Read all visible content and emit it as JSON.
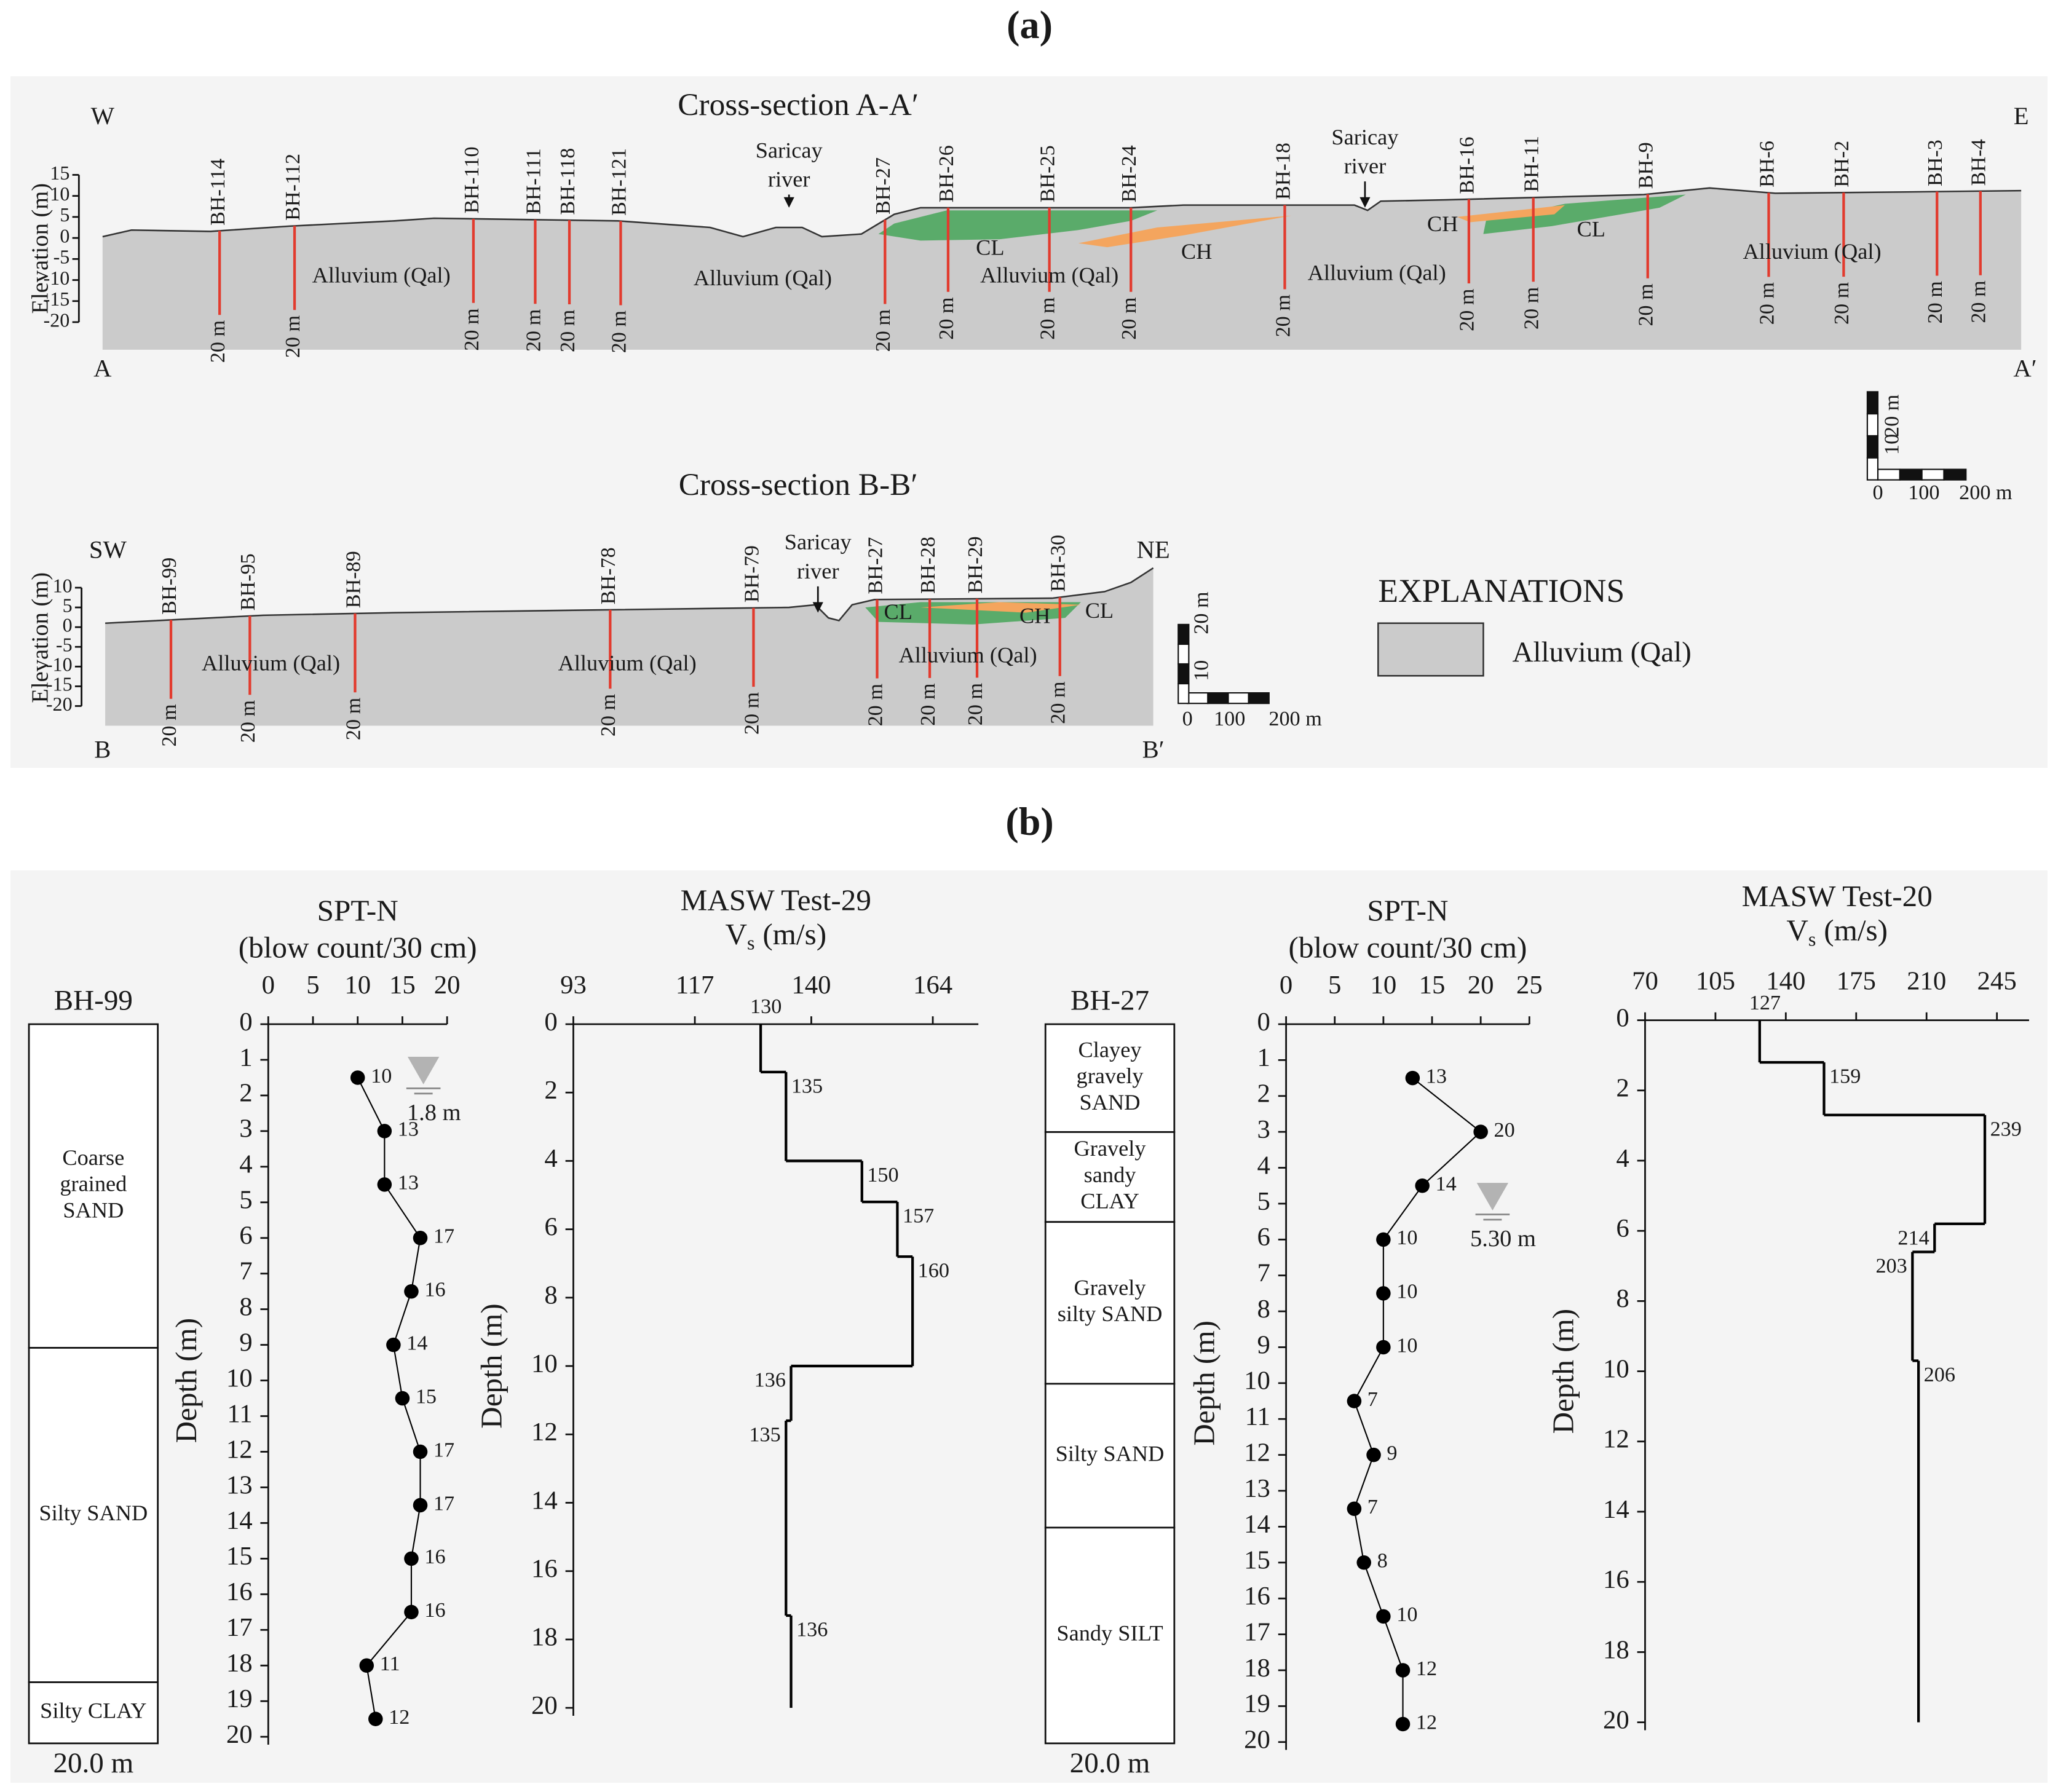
{
  "figure_a": {
    "label": "(a)",
    "section_aa": {
      "title": "Cross-section A-A′",
      "west": "W",
      "east": "E",
      "start": "A",
      "end": "A′",
      "ylabel": "Elevation (m)",
      "yticks": [
        15,
        10,
        5,
        0,
        -5,
        -10,
        -15,
        -20
      ],
      "boreholes": [
        {
          "name": "BH-114",
          "depth": "20 m"
        },
        {
          "name": "BH-112",
          "depth": "20 m"
        },
        {
          "name": "BH-110",
          "depth": "20 m"
        },
        {
          "name": "BH-111",
          "depth": "20 m"
        },
        {
          "name": "BH-118",
          "depth": "20 m"
        },
        {
          "name": "BH-121",
          "depth": "20 m"
        },
        {
          "name": "BH-27",
          "depth": "20 m"
        },
        {
          "name": "BH-26",
          "depth": "20 m"
        },
        {
          "name": "BH-25",
          "depth": "20 m"
        },
        {
          "name": "BH-24",
          "depth": "20 m"
        },
        {
          "name": "BH-18",
          "depth": "20 m"
        },
        {
          "name": "BH-16",
          "depth": "20 m"
        },
        {
          "name": "BH-11",
          "depth": "20 m"
        },
        {
          "name": "BH-9",
          "depth": "20 m"
        },
        {
          "name": "BH-6",
          "depth": "20 m"
        },
        {
          "name": "BH-2",
          "depth": "20 m"
        },
        {
          "name": "BH-3",
          "depth": "20 m"
        },
        {
          "name": "BH-4",
          "depth": "20 m"
        }
      ],
      "rivers": [
        [
          "Saricay",
          "river"
        ],
        [
          "Saricay",
          "river"
        ]
      ],
      "units": [
        "Alluvium (Qal)",
        "Alluvium (Qal)",
        "Alluvium (Qal)",
        "Alluvium (Qal)",
        "Alluvium (Qal)",
        "CL",
        "CH",
        "CH",
        "CL"
      ],
      "scale": [
        "20 m",
        "10",
        "0",
        "100",
        "200 m"
      ]
    },
    "section_bb": {
      "title": "Cross-section B-B′",
      "west": "SW",
      "east": "NE",
      "start": "B",
      "end": "B′",
      "ylabel": "Elevation (m)",
      "yticks": [
        10,
        5,
        0,
        -5,
        -10,
        -15,
        -20
      ],
      "boreholes": [
        {
          "name": "BH-99",
          "depth": "20 m"
        },
        {
          "name": "BH-95",
          "depth": "20 m"
        },
        {
          "name": "BH-89",
          "depth": "20 m"
        },
        {
          "name": "BH-78",
          "depth": "20 m"
        },
        {
          "name": "BH-79",
          "depth": "20 m"
        },
        {
          "name": "BH-27",
          "depth": "20 m"
        },
        {
          "name": "BH-28",
          "depth": "20 m"
        },
        {
          "name": "BH-29",
          "depth": "20 m"
        },
        {
          "name": "BH-30",
          "depth": "20 m"
        }
      ],
      "rivers": [
        [
          "Saricay",
          "river"
        ]
      ],
      "units": [
        "Alluvium (Qal)",
        "Alluvium (Qal)",
        "Alluvium (Qal)",
        "CL",
        "CH",
        "CL"
      ],
      "scale": [
        "20 m",
        "10",
        "0",
        "100",
        "200 m"
      ]
    },
    "explanations": {
      "title": "EXPLANATIONS",
      "items": [
        "Alluvium (Qal)"
      ]
    }
  },
  "figure_b": {
    "label": "(b)",
    "logs": [
      {
        "name": "BH-99",
        "total": "20.0 m",
        "layers": [
          {
            "label": [
              "Coarse",
              "grained",
              "SAND"
            ],
            "bottom": 9.0
          },
          {
            "label": [
              "Silty SAND"
            ],
            "bottom": 18.3
          },
          {
            "label": [
              "Silty CLAY"
            ],
            "bottom": 20
          }
        ]
      },
      {
        "name": "BH-27",
        "total": "20.0 m",
        "layers": [
          {
            "label": [
              "Clayey",
              "gravely",
              "SAND"
            ],
            "bottom": 3.0
          },
          {
            "label": [
              "Gravely",
              "sandy",
              "CLAY"
            ],
            "bottom": 5.5
          },
          {
            "label": [
              "Gravely",
              "silty SAND"
            ],
            "bottom": 10.0
          },
          {
            "label": [
              "Silty SAND"
            ],
            "bottom": 14.0
          },
          {
            "label": [
              "Sandy SILT"
            ],
            "bottom": 20
          }
        ]
      }
    ]
  },
  "chart_data": [
    {
      "type": "line",
      "title": "SPT-N",
      "subtitle": "(blow count/30 cm)",
      "ylabel": "Depth (m)",
      "color": "#000000",
      "values": [
        10,
        13,
        13,
        17,
        16,
        14,
        15,
        17,
        17,
        16,
        16,
        11,
        12
      ],
      "depths": [
        1.5,
        3,
        4.5,
        6,
        7.5,
        9,
        10.5,
        12,
        13.5,
        15,
        16.5,
        18,
        19.5
      ],
      "xlim": [
        0,
        20
      ],
      "xticks": [
        0,
        5,
        10,
        15,
        20
      ],
      "ylim": [
        0,
        20
      ],
      "yticks": [
        0,
        1,
        2,
        3,
        4,
        5,
        6,
        7,
        8,
        9,
        10,
        11,
        12,
        13,
        14,
        15,
        16,
        17,
        18,
        19,
        20
      ],
      "water_table": {
        "value": 1.8,
        "label": "1.8 m"
      }
    },
    {
      "type": "step",
      "title": "MASW Test-29",
      "xlabel": "V",
      "xlabel_sub": "s",
      "xlabel_unit": "(m/s)",
      "ylabel": "Depth (m)",
      "color": "#000000",
      "values": [
        130,
        135,
        150,
        157,
        160,
        136,
        135,
        136
      ],
      "depths": [
        0,
        1.4,
        4.0,
        5.2,
        6.8,
        10.0,
        11.6,
        17.3,
        20
      ],
      "xlim": [
        93,
        173
      ],
      "xticks": [
        93,
        117,
        140,
        164
      ],
      "ylim": [
        0,
        20
      ],
      "yticks": [
        0,
        2,
        4,
        6,
        8,
        10,
        12,
        14,
        16,
        18,
        20
      ]
    },
    {
      "type": "line",
      "title": "SPT-N",
      "subtitle": "(blow count/30 cm)",
      "ylabel": "Depth (m)",
      "color": "#000000",
      "values": [
        13,
        20,
        14,
        10,
        10,
        10,
        7,
        9,
        7,
        8,
        10,
        12,
        12
      ],
      "depths": [
        1.5,
        3,
        4.5,
        6,
        7.5,
        9,
        10.5,
        12,
        13.5,
        15,
        16.5,
        18,
        19.5
      ],
      "xlim": [
        0,
        25
      ],
      "xticks": [
        0,
        5,
        10,
        15,
        20,
        25
      ],
      "ylim": [
        0,
        20
      ],
      "yticks": [
        0,
        1,
        2,
        3,
        4,
        5,
        6,
        7,
        8,
        9,
        10,
        11,
        12,
        13,
        14,
        15,
        16,
        17,
        18,
        19,
        20
      ],
      "water_table": {
        "value": 5.3,
        "label": "5.30 m"
      }
    },
    {
      "type": "step",
      "title": "MASW Test-20",
      "xlabel": "V",
      "xlabel_sub": "s",
      "xlabel_unit": "(m/s)",
      "ylabel": "Depth (m)",
      "color": "#000000",
      "values": [
        127,
        159,
        239,
        214,
        203,
        206
      ],
      "depths": [
        0,
        1.2,
        2.7,
        5.8,
        6.6,
        9.7,
        20
      ],
      "xlim": [
        70,
        261
      ],
      "xticks": [
        70,
        105,
        140,
        175,
        210,
        245
      ],
      "ylim": [
        0,
        20
      ],
      "yticks": [
        0,
        2,
        4,
        6,
        8,
        10,
        12,
        14,
        16,
        18,
        20
      ]
    }
  ]
}
